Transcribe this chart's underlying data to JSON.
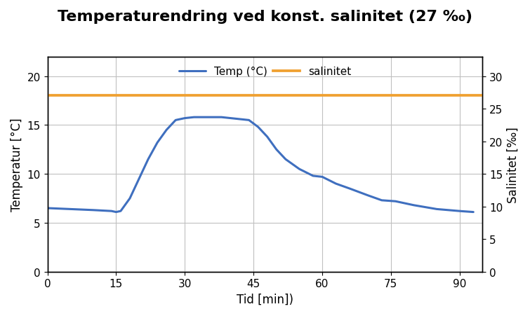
{
  "title": "Temperaturendring ved konst. salinitet (27 ‰)",
  "xlabel": "Tid [min])",
  "ylabel_left": "Temperatur [°C]",
  "ylabel_right": "Salinitet [‰]",
  "legend_temp": "Temp (°C)",
  "legend_sal": "salinitet",
  "temp_color": "#3f6fbf",
  "sal_color": "#f0a030",
  "background_color": "#ffffff",
  "border_color": "#000000",
  "xlim": [
    0,
    95
  ],
  "xticks": [
    0,
    15,
    30,
    45,
    60,
    75,
    90
  ],
  "ylim_left": [
    0,
    22
  ],
  "yticks_left": [
    0,
    5,
    10,
    15,
    20
  ],
  "ylim_right": [
    0,
    33
  ],
  "yticks_right": [
    0,
    5,
    10,
    15,
    20,
    25,
    30
  ],
  "sal_value": 27,
  "sal_line_y_left": 18.0,
  "temp_x": [
    0,
    5,
    10,
    14,
    15,
    16,
    18,
    20,
    22,
    24,
    26,
    28,
    30,
    32,
    35,
    38,
    40,
    42,
    44,
    46,
    48,
    50,
    52,
    55,
    58,
    60,
    63,
    66,
    70,
    73,
    76,
    80,
    85,
    90,
    93
  ],
  "temp_y": [
    6.5,
    6.4,
    6.3,
    6.2,
    6.1,
    6.2,
    7.5,
    9.5,
    11.5,
    13.2,
    14.5,
    15.5,
    15.7,
    15.8,
    15.8,
    15.8,
    15.7,
    15.6,
    15.5,
    14.8,
    13.8,
    12.5,
    11.5,
    10.5,
    9.8,
    9.7,
    9.0,
    8.5,
    7.8,
    7.3,
    7.2,
    6.8,
    6.4,
    6.2,
    6.1
  ],
  "title_fontsize": 16,
  "axis_label_fontsize": 12,
  "tick_fontsize": 11,
  "legend_fontsize": 11,
  "line_width": 2.2,
  "grid_color": "#c0c0c0",
  "grid_linewidth": 0.8
}
